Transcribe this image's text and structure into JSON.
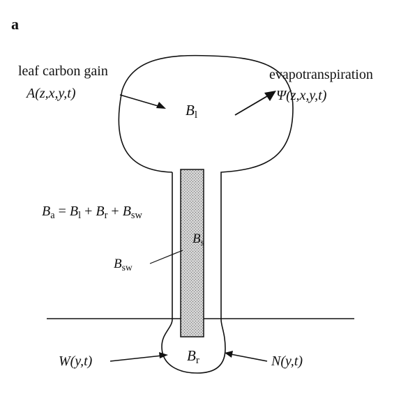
{
  "panel_label": "a",
  "labels": {
    "carbon_gain_title": "leaf carbon gain",
    "carbon_gain_expr": "A(z,x,y,t)",
    "evap_title": "evapotranspiration",
    "evap_expr": "Ψ(z,x,y,t)",
    "leaf_biomass": "B",
    "leaf_sub": "l",
    "total_eq": {
      "lhs": "B",
      "lhs_sub": "a",
      "eq": " = ",
      "t1": "B",
      "t1_sub": "l",
      "plus1": " + ",
      "t2": "B",
      "t2_sub": "r",
      "plus2": " + ",
      "t3": "B",
      "t3_sub": "sw"
    },
    "stem_biomass": "B",
    "stem_sub": "s",
    "sapwood": "B",
    "sapwood_sub": "sw",
    "root_biomass": "B",
    "root_sub": "r",
    "water_expr": "W(y,t)",
    "nitrogen_expr": "N(y,t)"
  },
  "colors": {
    "ink": "#111111",
    "stem_fill": "#c9c9c9",
    "background": "#ffffff"
  }
}
